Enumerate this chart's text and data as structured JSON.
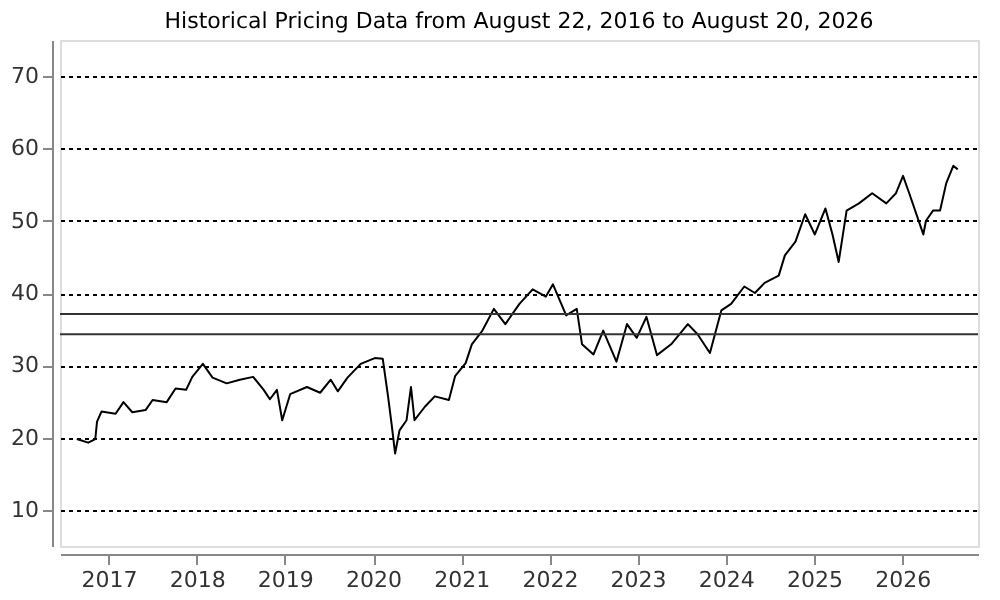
{
  "chart_data": {
    "type": "line",
    "title": "Historical Pricing Data from August 22, 2016 to August 20, 2026",
    "x": [
      2016.64,
      2016.77,
      2016.85,
      2016.87,
      2016.92,
      2017.08,
      2017.17,
      2017.27,
      2017.42,
      2017.5,
      2017.66,
      2017.76,
      2017.88,
      2017.95,
      2018.07,
      2018.18,
      2018.34,
      2018.49,
      2018.64,
      2018.76,
      2018.83,
      2018.91,
      2018.97,
      2019.06,
      2019.25,
      2019.4,
      2019.52,
      2019.6,
      2019.71,
      2019.86,
      2020.02,
      2020.11,
      2020.17,
      2020.21,
      2020.25,
      2020.3,
      2020.38,
      2020.43,
      2020.47,
      2020.59,
      2020.7,
      2020.86,
      2020.93,
      2021.05,
      2021.12,
      2021.24,
      2021.37,
      2021.5,
      2021.66,
      2021.81,
      2021.96,
      2022.04,
      2022.19,
      2022.31,
      2022.37,
      2022.5,
      2022.61,
      2022.76,
      2022.88,
      2022.99,
      2023.1,
      2023.22,
      2023.38,
      2023.57,
      2023.68,
      2023.82,
      2023.95,
      2024.06,
      2024.21,
      2024.33,
      2024.44,
      2024.6,
      2024.67,
      2024.79,
      2024.9,
      2025.01,
      2025.13,
      2025.21,
      2025.28,
      2025.37,
      2025.51,
      2025.66,
      2025.82,
      2025.93,
      2026.01,
      2026.08,
      2026.24,
      2026.27,
      2026.35,
      2026.43,
      2026.5,
      2026.58,
      2026.63
    ],
    "values": [
      19.8,
      19.3,
      19.8,
      22.2,
      23.6,
      23.3,
      24.9,
      23.5,
      23.8,
      25.2,
      24.9,
      26.8,
      26.6,
      28.4,
      30.2,
      28.3,
      27.5,
      28,
      28.4,
      26.6,
      25.3,
      26.6,
      22.4,
      26,
      27,
      26.2,
      28,
      26.4,
      28.3,
      30.2,
      31,
      30.9,
      25.7,
      21.9,
      17.8,
      21,
      22.4,
      27,
      22.4,
      24.3,
      25.7,
      25.2,
      28.5,
      30.3,
      32.9,
      34.8,
      37.8,
      35.7,
      38.5,
      40.5,
      39.5,
      41.2,
      36.9,
      37.8,
      32.9,
      31.5,
      34.8,
      30.5,
      35.7,
      33.8,
      36.7,
      31.4,
      32.9,
      35.7,
      34.3,
      31.7,
      37.6,
      38.5,
      40.9,
      40,
      41.4,
      42.4,
      45.2,
      47.1,
      50.9,
      48.1,
      51.7,
      48.1,
      44.3,
      51.4,
      52.4,
      53.8,
      52.4,
      53.8,
      56.2,
      53.8,
      48.1,
      50,
      51.4,
      51.4,
      55.2,
      57.6,
      57.1
    ],
    "color": "#000000",
    "line_style": "solid",
    "xlim": [
      2016.45,
      2026.86
    ],
    "xticks": [
      2017,
      2018,
      2019,
      2020,
      2021,
      2022,
      2023,
      2024,
      2025,
      2026
    ],
    "ylim": [
      5,
      75
    ],
    "yticks": [
      10,
      20,
      30,
      40,
      50,
      60,
      70
    ],
    "grid": "y",
    "ref_lines": [
      {
        "axis": "y",
        "value": 37.1,
        "color": "#333333",
        "line_style": "solid"
      },
      {
        "axis": "y",
        "value": 34.3,
        "color": "#333333",
        "line_style": "solid"
      }
    ]
  }
}
